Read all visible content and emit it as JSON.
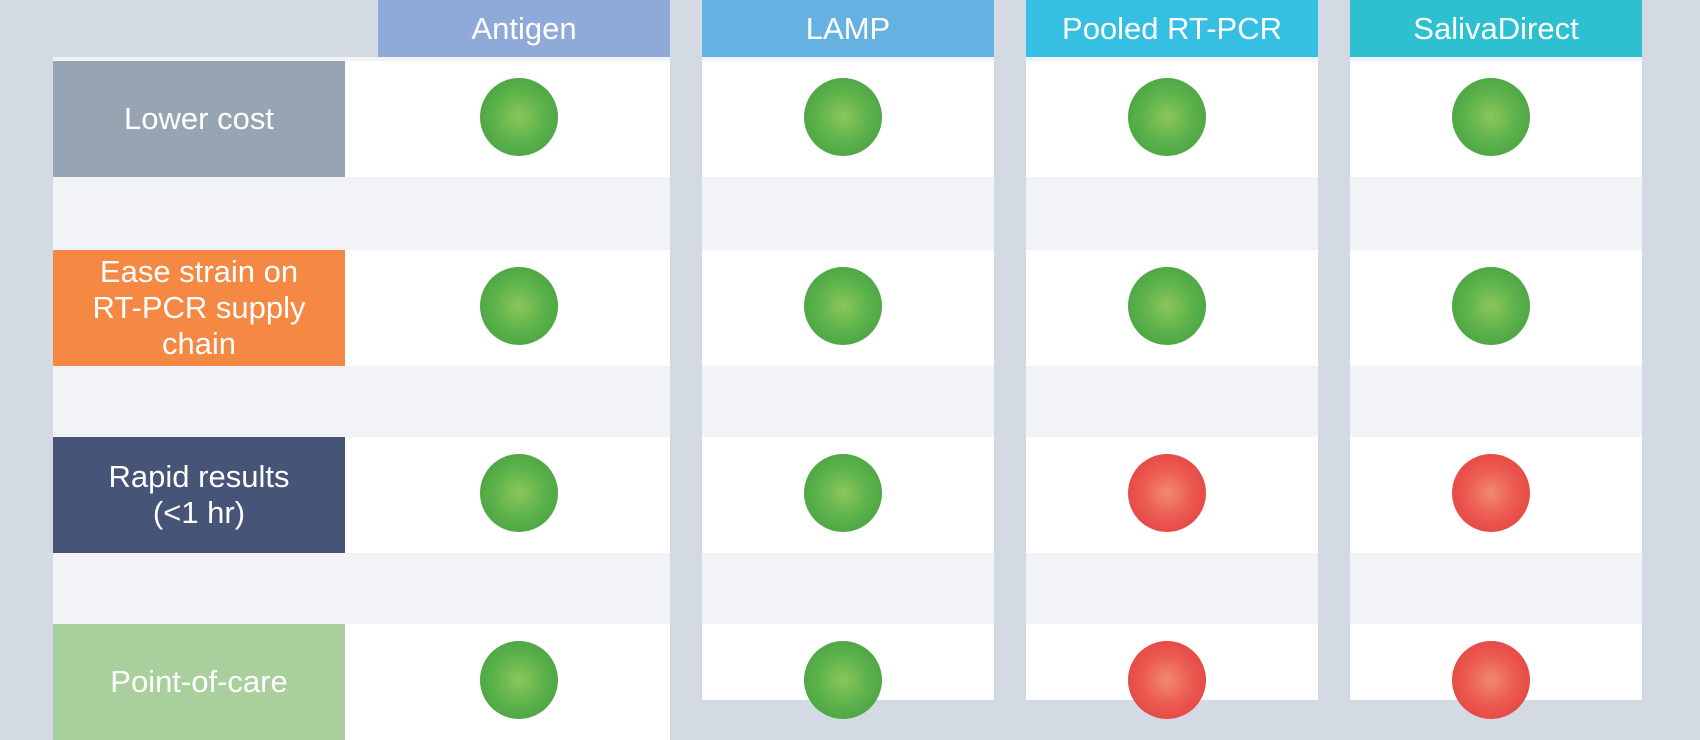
{
  "columns": [
    {
      "label": "Antigen",
      "color": "#8fa9d8"
    },
    {
      "label": "LAMP",
      "color": "#65b2e2"
    },
    {
      "label": "Pooled RT-PCR",
      "color": "#35bfe3"
    },
    {
      "label": "SalivaDirect",
      "color": "#2dc0d0"
    }
  ],
  "rows": [
    {
      "label": "Lower cost",
      "color": "#97a4b4",
      "results": [
        "green",
        "green",
        "green",
        "green"
      ]
    },
    {
      "label": "Ease strain on RT-PCR supply chain",
      "color": "#f58842",
      "results": [
        "green",
        "green",
        "green",
        "green"
      ]
    },
    {
      "label": "Rapid results (<1 hr)",
      "color": "#465477",
      "results": [
        "green",
        "green",
        "red",
        "red"
      ]
    },
    {
      "label": "Point-of-care",
      "color": "#a9cf9c",
      "results": [
        "green",
        "green",
        "red",
        "red"
      ]
    }
  ]
}
